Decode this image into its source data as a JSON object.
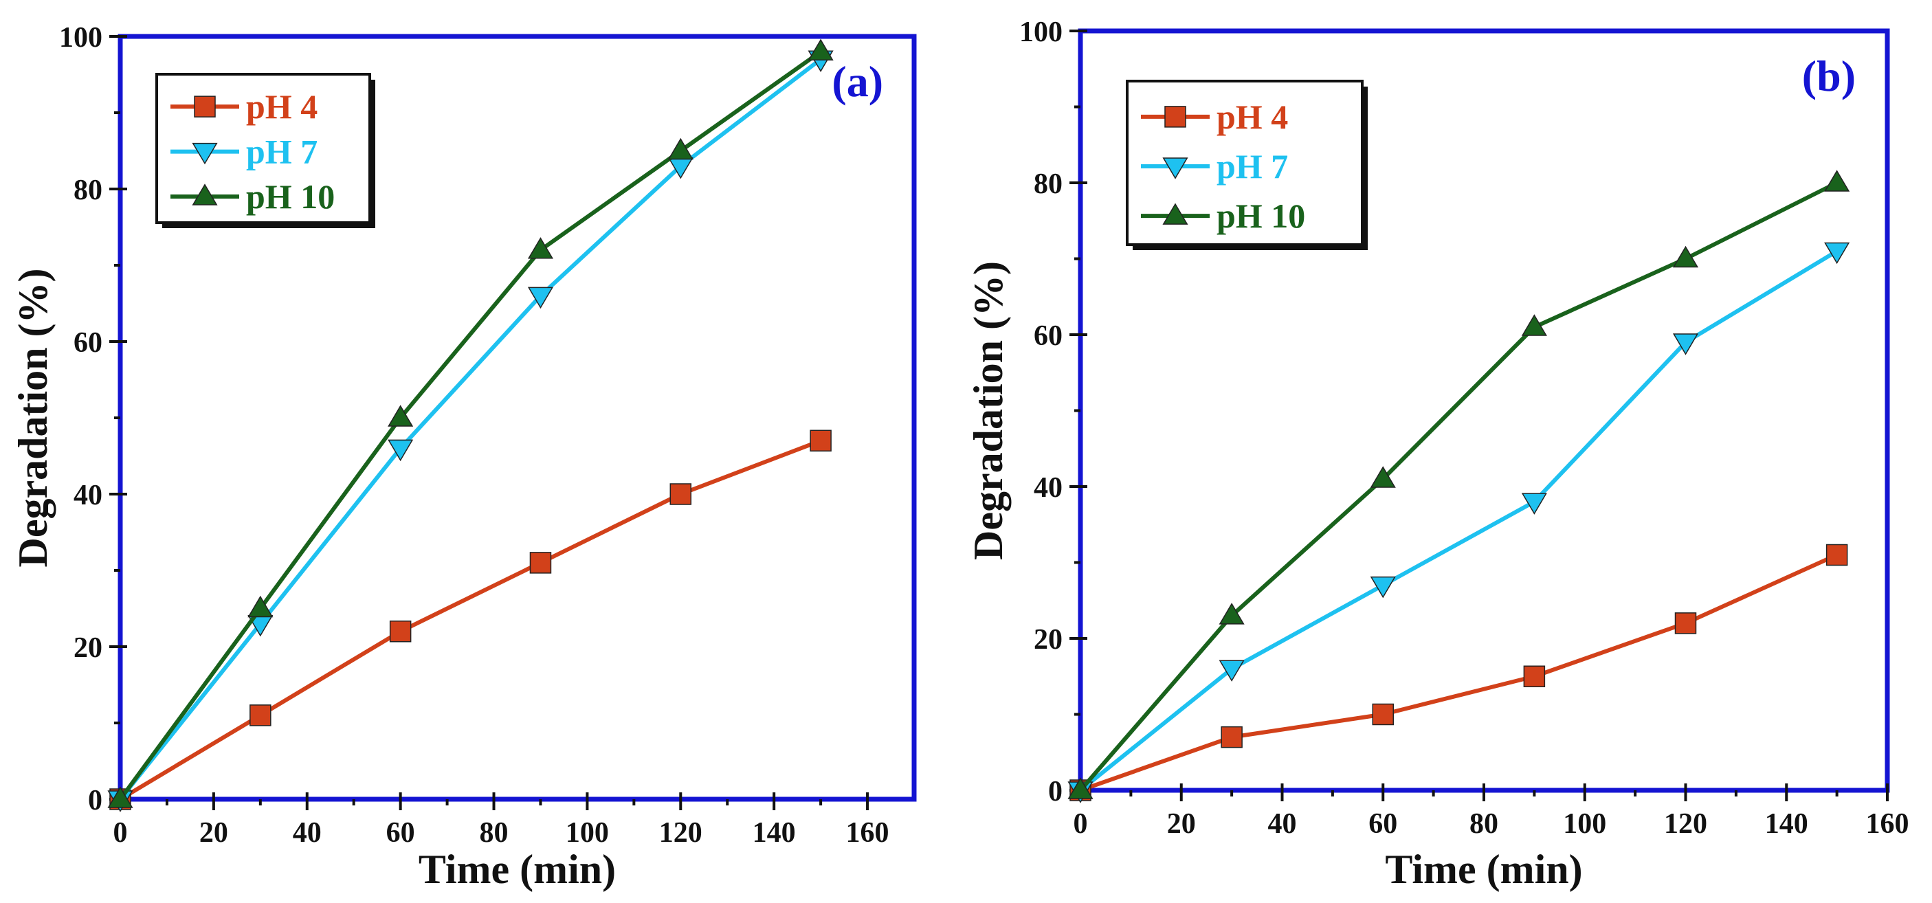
{
  "chart_data": [
    {
      "type": "line",
      "panel_label": "(a)",
      "xlabel": "Time (min)",
      "ylabel": "Degradation (%)",
      "xlim": [
        0,
        170
      ],
      "ylim": [
        0,
        100
      ],
      "xticks": [
        0,
        20,
        40,
        60,
        80,
        100,
        120,
        140,
        160
      ],
      "yticks": [
        0,
        20,
        40,
        60,
        80,
        100
      ],
      "legend_position": "top-left",
      "x": [
        0,
        30,
        60,
        90,
        120,
        150
      ],
      "series": [
        {
          "name": "pH 4",
          "marker": "square",
          "color": "#d2411a",
          "values": [
            0,
            11,
            22,
            31,
            40,
            47
          ]
        },
        {
          "name": "pH 7",
          "marker": "triangle-down",
          "color": "#1ec1f0",
          "values": [
            0,
            23,
            46,
            66,
            83,
            97
          ]
        },
        {
          "name": "pH 10",
          "marker": "triangle-up",
          "color": "#19621c",
          "values": [
            0,
            25,
            50,
            72,
            85,
            98
          ]
        }
      ]
    },
    {
      "type": "line",
      "panel_label": "(b)",
      "xlabel": "Time (min)",
      "ylabel": "Degradation (%)",
      "xlim": [
        0,
        160
      ],
      "ylim": [
        0,
        100
      ],
      "xticks": [
        0,
        20,
        40,
        60,
        80,
        100,
        120,
        140,
        160
      ],
      "yticks": [
        0,
        20,
        40,
        60,
        80,
        100
      ],
      "legend_position": "top-left",
      "x": [
        0,
        30,
        60,
        90,
        120,
        150
      ],
      "series": [
        {
          "name": "pH 4",
          "marker": "square",
          "color": "#d2411a",
          "values": [
            0,
            7,
            10,
            15,
            22,
            31
          ]
        },
        {
          "name": "pH 7",
          "marker": "triangle-down",
          "color": "#1ec1f0",
          "values": [
            0,
            16,
            27,
            38,
            59,
            71
          ]
        },
        {
          "name": "pH 10",
          "marker": "triangle-up",
          "color": "#19621c",
          "values": [
            0,
            23,
            41,
            61,
            70,
            80
          ]
        }
      ]
    }
  ]
}
